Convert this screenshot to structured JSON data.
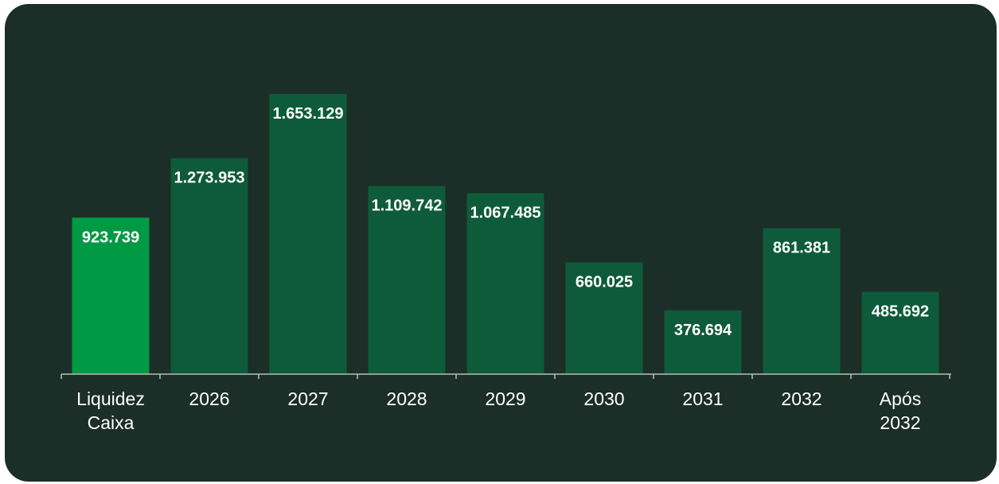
{
  "chart_data": {
    "type": "bar",
    "categories": [
      [
        "Liquidez",
        "Caixa"
      ],
      [
        "2026"
      ],
      [
        "2027"
      ],
      [
        "2028"
      ],
      [
        "2029"
      ],
      [
        "2030"
      ],
      [
        "2031"
      ],
      [
        "2032"
      ],
      [
        "Após",
        "2032"
      ]
    ],
    "values": [
      923739,
      1273953,
      1653129,
      1109742,
      1067485,
      660025,
      376694,
      861381,
      485692
    ],
    "value_labels": [
      "923.739",
      "1.273.953",
      "1.653.129",
      "1.109.742",
      "1.067.485",
      "660.025",
      "376.694",
      "861.381",
      "485.692"
    ],
    "ylim": [
      0,
      1653129
    ],
    "grid": false,
    "colors": {
      "highlight": "#009a44",
      "bar": "#0e5b3b",
      "axis": "#b7bdb9",
      "background": "#1b2e27"
    }
  }
}
